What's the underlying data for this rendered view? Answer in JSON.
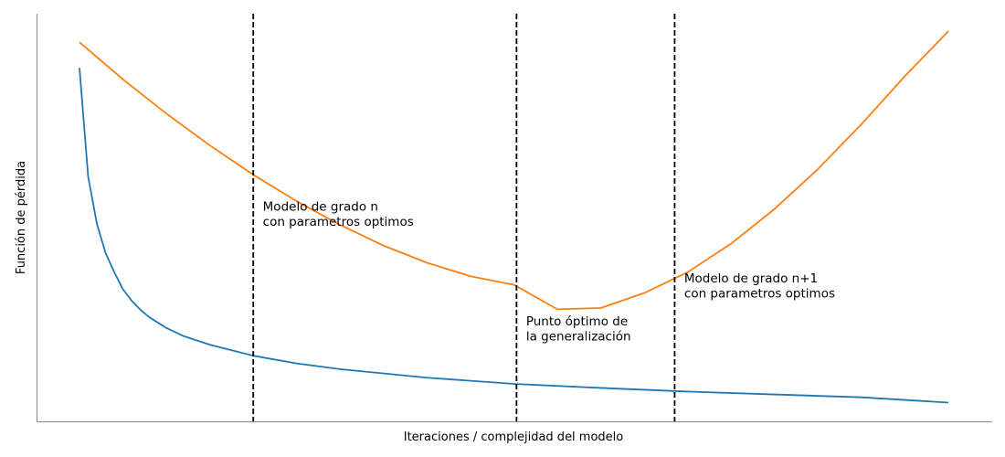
{
  "chart_data": {
    "type": "line",
    "title": "",
    "xlabel": "Iteraciones / complejidad del modelo",
    "ylabel": "Función de pérdida",
    "xlim": [
      0,
      100
    ],
    "ylim": [
      0,
      100
    ],
    "grid": false,
    "ticks_visible": false,
    "series": [
      {
        "color": "#1f77b4",
        "x": [
          0,
          1,
          2,
          3,
          4,
          5,
          6,
          7,
          8,
          10,
          12,
          15,
          20,
          25,
          30,
          40,
          50,
          60,
          70,
          80,
          90,
          100
        ],
        "y": [
          86.7,
          60.0,
          48.5,
          41.3,
          36.6,
          32.4,
          29.6,
          27.4,
          25.6,
          22.9,
          20.9,
          18.8,
          16.1,
          14.2,
          12.8,
          10.7,
          9.2,
          8.2,
          7.3,
          6.6,
          5.9,
          4.6
        ]
      },
      {
        "color": "#ff7f0e",
        "x": [
          0,
          5,
          10,
          15,
          20,
          25,
          30,
          35,
          40,
          45,
          50,
          55,
          60,
          65,
          70,
          75,
          80,
          85,
          90,
          95,
          100
        ],
        "y": [
          93.0,
          83.9,
          75.5,
          67.7,
          60.5,
          54.0,
          48.2,
          43.1,
          38.9,
          35.6,
          33.5,
          27.5,
          27.8,
          31.5,
          36.6,
          43.6,
          52.1,
          61.9,
          72.9,
          84.7,
          95.7
        ]
      }
    ],
    "vlines": [
      {
        "x": 20,
        "style": "dashed",
        "color": "#000000"
      },
      {
        "x": 50.3,
        "style": "dashed",
        "color": "#000000"
      },
      {
        "x": 68.5,
        "style": "dashed",
        "color": "#000000"
      }
    ],
    "annotations": [
      {
        "x": 21.1,
        "y": 51.7,
        "lines": [
          "Modelo de grado n",
          "con parametros optimos"
        ]
      },
      {
        "x": 51.4,
        "y": 23.5,
        "lines": [
          "Punto óptimo de",
          "la generalización"
        ]
      },
      {
        "x": 69.6,
        "y": 34.1,
        "lines": [
          "Modelo de grado n+1",
          "con parametros optimos"
        ]
      }
    ]
  }
}
